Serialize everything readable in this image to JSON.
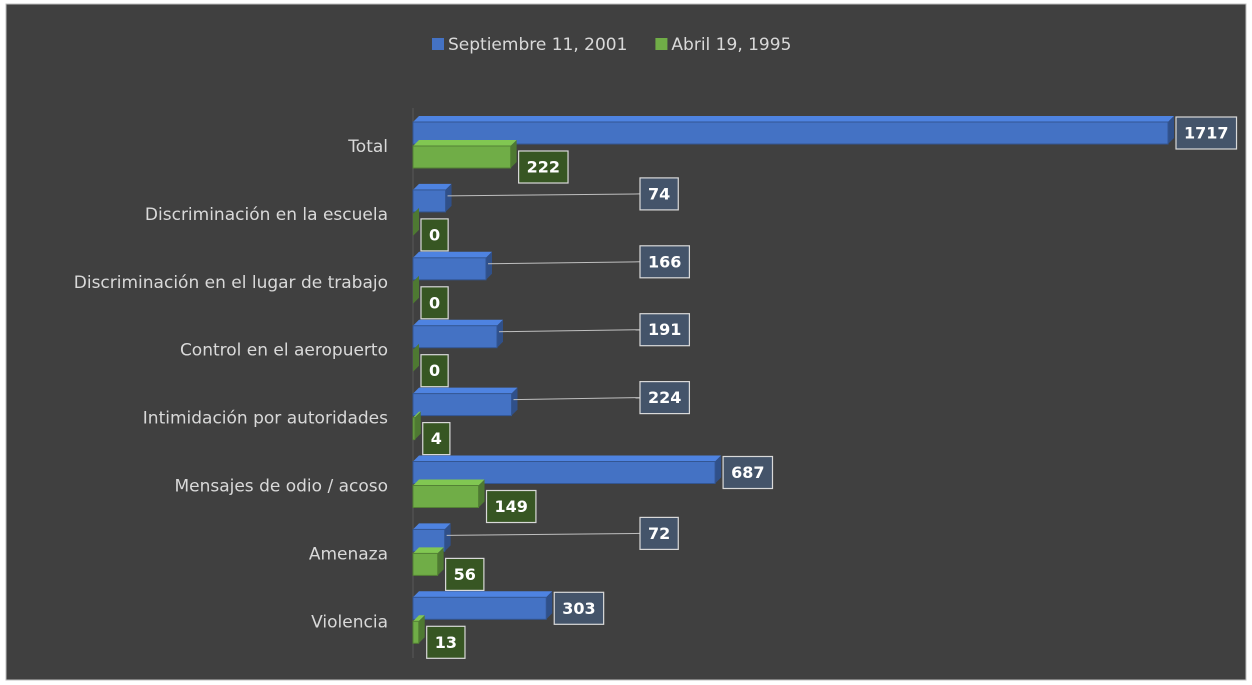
{
  "chart_data": {
    "type": "bar",
    "orientation": "horizontal",
    "categories": [
      "Total",
      "Discriminación en la escuela",
      "Discriminación en el lugar de trabajo",
      "Control en el aeropuerto",
      "Intimidación por autoridades",
      "Mensajes de odio / acoso",
      "Amenaza",
      "Violencia"
    ],
    "series": [
      {
        "name": "Septiembre 11, 2001",
        "color": "#4472c4",
        "values": [
          1717,
          74,
          166,
          191,
          224,
          687,
          72,
          303
        ]
      },
      {
        "name": "Abril 19, 1995",
        "color": "#70ad47",
        "values": [
          222,
          0,
          0,
          0,
          4,
          149,
          56,
          13
        ]
      }
    ],
    "legend": "top",
    "data_labels": true
  }
}
